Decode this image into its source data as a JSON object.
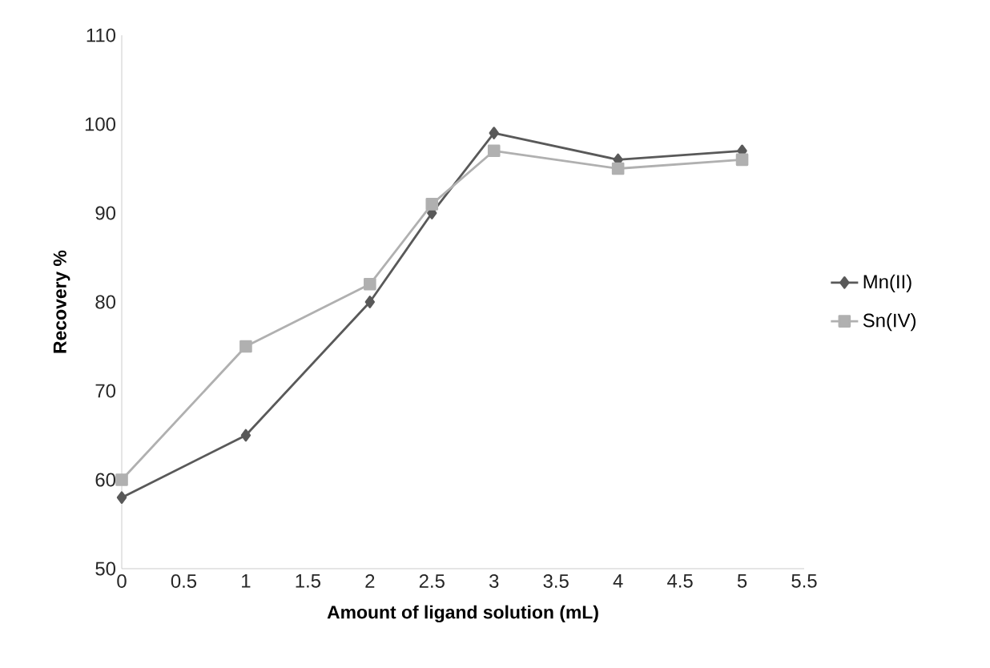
{
  "chart_data": {
    "type": "line",
    "xlabel": "Amount of ligand solution (mL)",
    "ylabel": "Recovery %",
    "x": [
      0,
      1,
      2,
      2.5,
      3,
      4,
      5
    ],
    "series": [
      {
        "name": "Mn(II)",
        "color": "#595959",
        "marker": "diamond",
        "values": [
          58,
          65,
          80,
          90,
          99,
          96,
          97
        ]
      },
      {
        "name": "Sn(IV)",
        "color": "#b0b0b0",
        "marker": "square",
        "values": [
          60,
          75,
          82,
          91,
          97,
          95,
          96
        ]
      }
    ],
    "xlim": [
      0,
      5.5
    ],
    "xticks": [
      0,
      0.5,
      1,
      1.5,
      2,
      2.5,
      3,
      3.5,
      4,
      4.5,
      5,
      5.5
    ],
    "ylim": [
      50,
      110
    ],
    "yticks": [
      50,
      60,
      70,
      80,
      90,
      100,
      110
    ],
    "grid": false,
    "legend": "right",
    "line_style": "solid"
  }
}
